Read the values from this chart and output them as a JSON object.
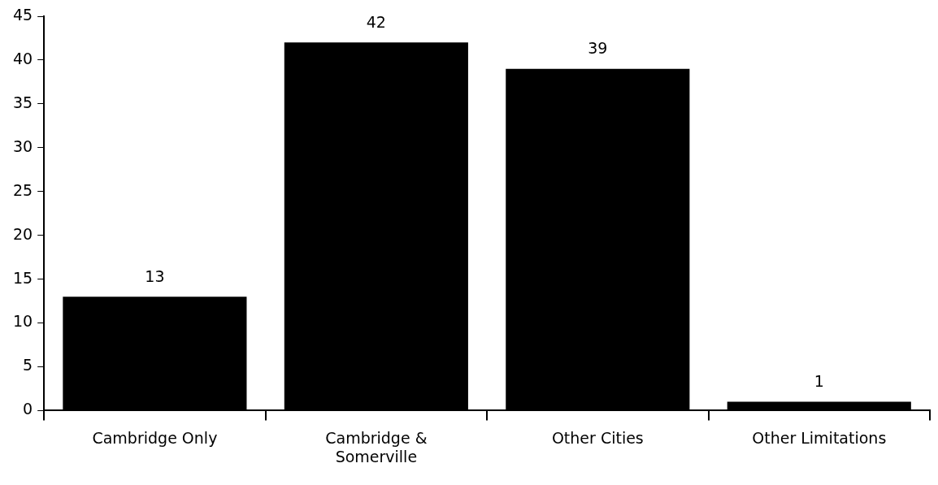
{
  "chart_data": {
    "type": "bar",
    "categories": [
      "Cambridge Only",
      "Cambridge & Somerville",
      "Other Cities",
      "Other Limitations"
    ],
    "values": [
      13,
      42,
      39,
      1
    ],
    "color": "#000000",
    "ylim": [
      0,
      45
    ],
    "yticks": [
      0,
      5,
      10,
      15,
      20,
      25,
      30,
      35,
      40,
      45
    ],
    "grid": false,
    "legend": false,
    "data_labels": true
  }
}
